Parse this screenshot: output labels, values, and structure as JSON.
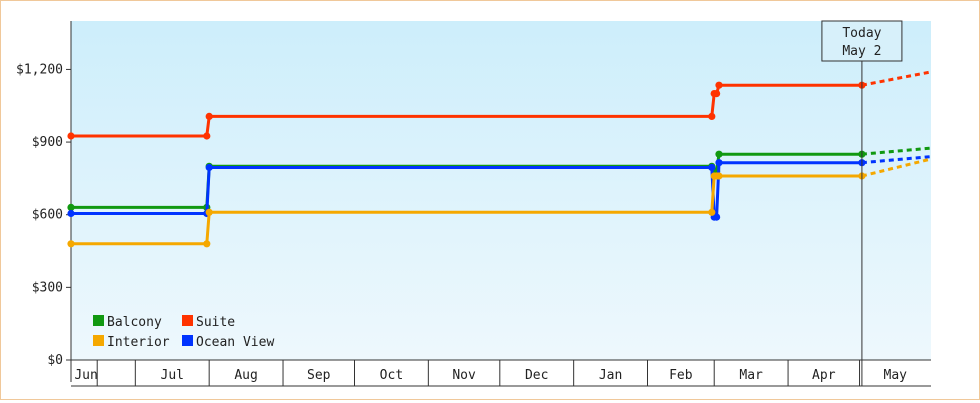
{
  "chart_data": {
    "type": "line",
    "title": "",
    "xlabel": "",
    "ylabel": "",
    "ylim": [
      0,
      1400
    ],
    "y_ticks": [
      0,
      300,
      600,
      900,
      1200
    ],
    "y_tick_labels": [
      "$0",
      "$300",
      "$600",
      "$900",
      "$1,200"
    ],
    "months": [
      "Jun",
      "Jul",
      "Aug",
      "Sep",
      "Oct",
      "Nov",
      "Dec",
      "Jan",
      "Feb",
      "Mar",
      "Apr",
      "May"
    ],
    "x_range": [
      "2013-06-04",
      "2014-05-31"
    ],
    "month_starts": [
      "2013-06-15",
      "2013-07-01",
      "2013-08-01",
      "2013-09-01",
      "2013-10-01",
      "2013-11-01",
      "2013-12-01",
      "2014-01-01",
      "2014-02-01",
      "2014-03-01",
      "2014-04-01",
      "2014-05-01"
    ],
    "today": {
      "line1": "Today",
      "line2": "May 2",
      "date": "2014-05-02"
    },
    "legend": {
      "position": "bottom-left",
      "items": [
        {
          "label": "Balcony",
          "color": "#119911"
        },
        {
          "label": "Suite",
          "color": "#ff3300"
        },
        {
          "label": "Interior",
          "color": "#f5a800"
        },
        {
          "label": "Ocean View",
          "color": "#0033ff"
        }
      ]
    },
    "series": [
      {
        "name": "Suite",
        "color": "#ff3300",
        "points": [
          [
            "2013-06-04",
            925
          ],
          [
            "2013-07-31",
            925
          ],
          [
            "2013-08-01",
            1006
          ],
          [
            "2014-02-28",
            1006
          ],
          [
            "2014-03-01",
            1100
          ],
          [
            "2014-03-02",
            1100
          ],
          [
            "2014-03-03",
            1135
          ],
          [
            "2014-05-02",
            1135
          ]
        ],
        "projection": [
          [
            "2014-05-02",
            1135
          ],
          [
            "2014-05-31",
            1190
          ]
        ]
      },
      {
        "name": "Balcony",
        "color": "#119911",
        "points": [
          [
            "2013-06-04",
            630
          ],
          [
            "2013-07-31",
            630
          ],
          [
            "2013-08-01",
            800
          ],
          [
            "2014-02-28",
            800
          ],
          [
            "2014-03-01",
            780
          ],
          [
            "2014-03-02",
            780
          ],
          [
            "2014-03-03",
            850
          ],
          [
            "2014-05-02",
            850
          ]
        ],
        "projection": [
          [
            "2014-05-02",
            850
          ],
          [
            "2014-05-31",
            875
          ]
        ]
      },
      {
        "name": "Ocean View",
        "color": "#0033ff",
        "points": [
          [
            "2013-06-04",
            605
          ],
          [
            "2013-07-31",
            605
          ],
          [
            "2013-08-01",
            795
          ],
          [
            "2014-02-28",
            795
          ],
          [
            "2014-03-01",
            590
          ],
          [
            "2014-03-02",
            590
          ],
          [
            "2014-03-03",
            815
          ],
          [
            "2014-05-02",
            815
          ]
        ],
        "projection": [
          [
            "2014-05-02",
            815
          ],
          [
            "2014-05-31",
            840
          ]
        ]
      },
      {
        "name": "Interior",
        "color": "#f5a800",
        "points": [
          [
            "2013-06-04",
            480
          ],
          [
            "2013-07-31",
            480
          ],
          [
            "2013-08-01",
            610
          ],
          [
            "2014-02-28",
            610
          ],
          [
            "2014-03-01",
            760
          ],
          [
            "2014-03-02",
            760
          ],
          [
            "2014-03-03",
            760
          ],
          [
            "2014-05-02",
            760
          ]
        ],
        "projection": [
          [
            "2014-05-02",
            760
          ],
          [
            "2014-05-31",
            830
          ]
        ]
      }
    ]
  }
}
